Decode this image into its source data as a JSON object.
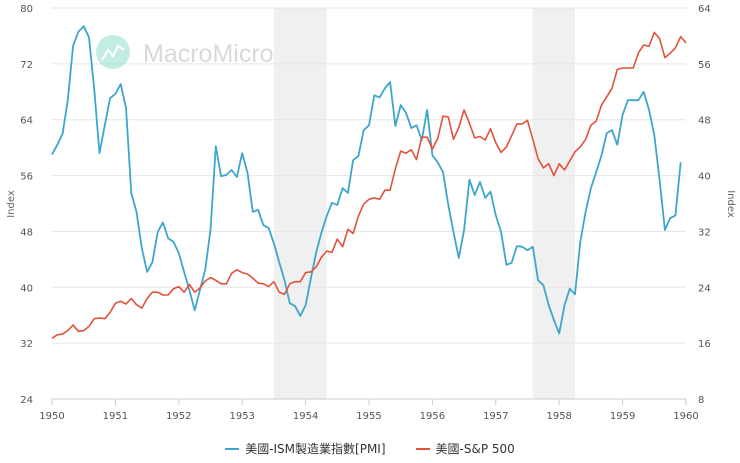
{
  "watermark": {
    "text": "MacroMicro",
    "color": "#7fd8c8"
  },
  "chart_data": {
    "type": "line",
    "x_start": "1950-01",
    "interval": "month",
    "xlim": [
      1950,
      1960
    ],
    "x_ticks": [
      "1950",
      "1951",
      "1952",
      "1953",
      "1954",
      "1955",
      "1956",
      "1957",
      "1958",
      "1959",
      "1960"
    ],
    "left_axis": {
      "label": "Index",
      "ylim": [
        24,
        80
      ],
      "ticks": [
        "24",
        "32",
        "40",
        "48",
        "56",
        "64",
        "72",
        "80"
      ]
    },
    "right_axis": {
      "label": "Index",
      "ylim": [
        8,
        64
      ],
      "ticks": [
        "8",
        "16",
        "24",
        "32",
        "40",
        "48",
        "56",
        "64"
      ]
    },
    "grid": true,
    "legend_position": "bottom",
    "shaded_periods": [
      [
        "1953-07",
        "1954-05"
      ],
      [
        "1957-08",
        "1958-04"
      ]
    ],
    "series": [
      {
        "name": "美國-ISM製造業指數[PMI]",
        "axis": "left",
        "color": "#3ea6cc",
        "values": [
          59,
          60.4,
          62,
          66.8,
          74.6,
          76.6,
          77.4,
          75.8,
          68.3,
          59.2,
          63.2,
          67.1,
          67.7,
          69.1,
          65.7,
          53.5,
          50.8,
          45.6,
          42.2,
          43.6,
          47.9,
          49.3,
          47,
          46.5,
          44.9,
          42.2,
          39.6,
          36.7,
          39.6,
          42.5,
          48.2,
          60.2,
          55.9,
          56.1,
          56.8,
          55.8,
          59.2,
          56.4,
          50.8,
          51.1,
          48.9,
          48.5,
          46.3,
          43.6,
          41,
          37.7,
          37.3,
          35.9,
          37.4,
          41.3,
          45,
          47.8,
          50.2,
          52.1,
          51.8,
          54.2,
          53.5,
          58.2,
          58.8,
          62.5,
          63.2,
          67.5,
          67.2,
          68.5,
          69.4,
          63.1,
          66.1,
          65,
          62.8,
          63.2,
          61.1,
          65.4,
          58.9,
          57.9,
          56.5,
          51.8,
          47.9,
          44.2,
          48.2,
          55.4,
          53.2,
          55.1,
          52.8,
          53.7,
          50.3,
          47.9,
          43.2,
          43.5,
          45.9,
          45.8,
          45.3,
          45.8,
          41,
          40.3,
          37.5,
          35.3,
          33.4,
          37.4,
          39.8,
          39,
          46.5,
          50.8,
          54.2,
          56.5,
          58.9,
          62.1,
          62.5,
          60.4,
          64.7,
          66.8,
          66.8,
          66.8,
          68,
          65.4,
          61.8,
          55.4,
          48.2,
          49.9,
          50.3,
          57.9
        ]
      },
      {
        "name": "美國-S&P 500",
        "axis": "right",
        "color": "#e2523b",
        "values": [
          16.7,
          17.2,
          17.3,
          17.8,
          18.6,
          17.7,
          17.8,
          18.4,
          19.5,
          19.6,
          19.5,
          20.4,
          21.7,
          22.0,
          21.6,
          22.4,
          21.5,
          21.0,
          22.4,
          23.3,
          23.3,
          22.9,
          22.9,
          23.8,
          24.1,
          23.3,
          24.4,
          23.3,
          23.9,
          24.9,
          25.4,
          25.0,
          24.5,
          24.5,
          26.0,
          26.5,
          26.1,
          25.9,
          25.3,
          24.6,
          24.5,
          24.1,
          24.8,
          23.3,
          23.0,
          24.5,
          24.8,
          24.8,
          26.1,
          26.2,
          26.9,
          28.3,
          29.2,
          29.0,
          30.9,
          29.8,
          32.3,
          31.7,
          34.2,
          35.9,
          36.6,
          36.8,
          36.6,
          37.9,
          37.9,
          41.0,
          43.5,
          43.2,
          43.7,
          42.3,
          45.5,
          45.5,
          43.8,
          45.3,
          48.5,
          48.4,
          45.2,
          46.9,
          49.4,
          47.5,
          45.4,
          45.6,
          45.1,
          46.7,
          44.7,
          43.3,
          44.1,
          45.7,
          47.4,
          47.4,
          47.9,
          45.2,
          42.4,
          41.1,
          41.7,
          40.0,
          41.7,
          40.8,
          42.1,
          43.4,
          44.1,
          45.2,
          47.2,
          47.8,
          50.1,
          51.3,
          52.5,
          55.2,
          55.4,
          55.4,
          55.4,
          57.6,
          58.7,
          58.5,
          60.5,
          59.6,
          56.9,
          57.5,
          58.3,
          59.9,
          59.0
        ]
      }
    ]
  }
}
